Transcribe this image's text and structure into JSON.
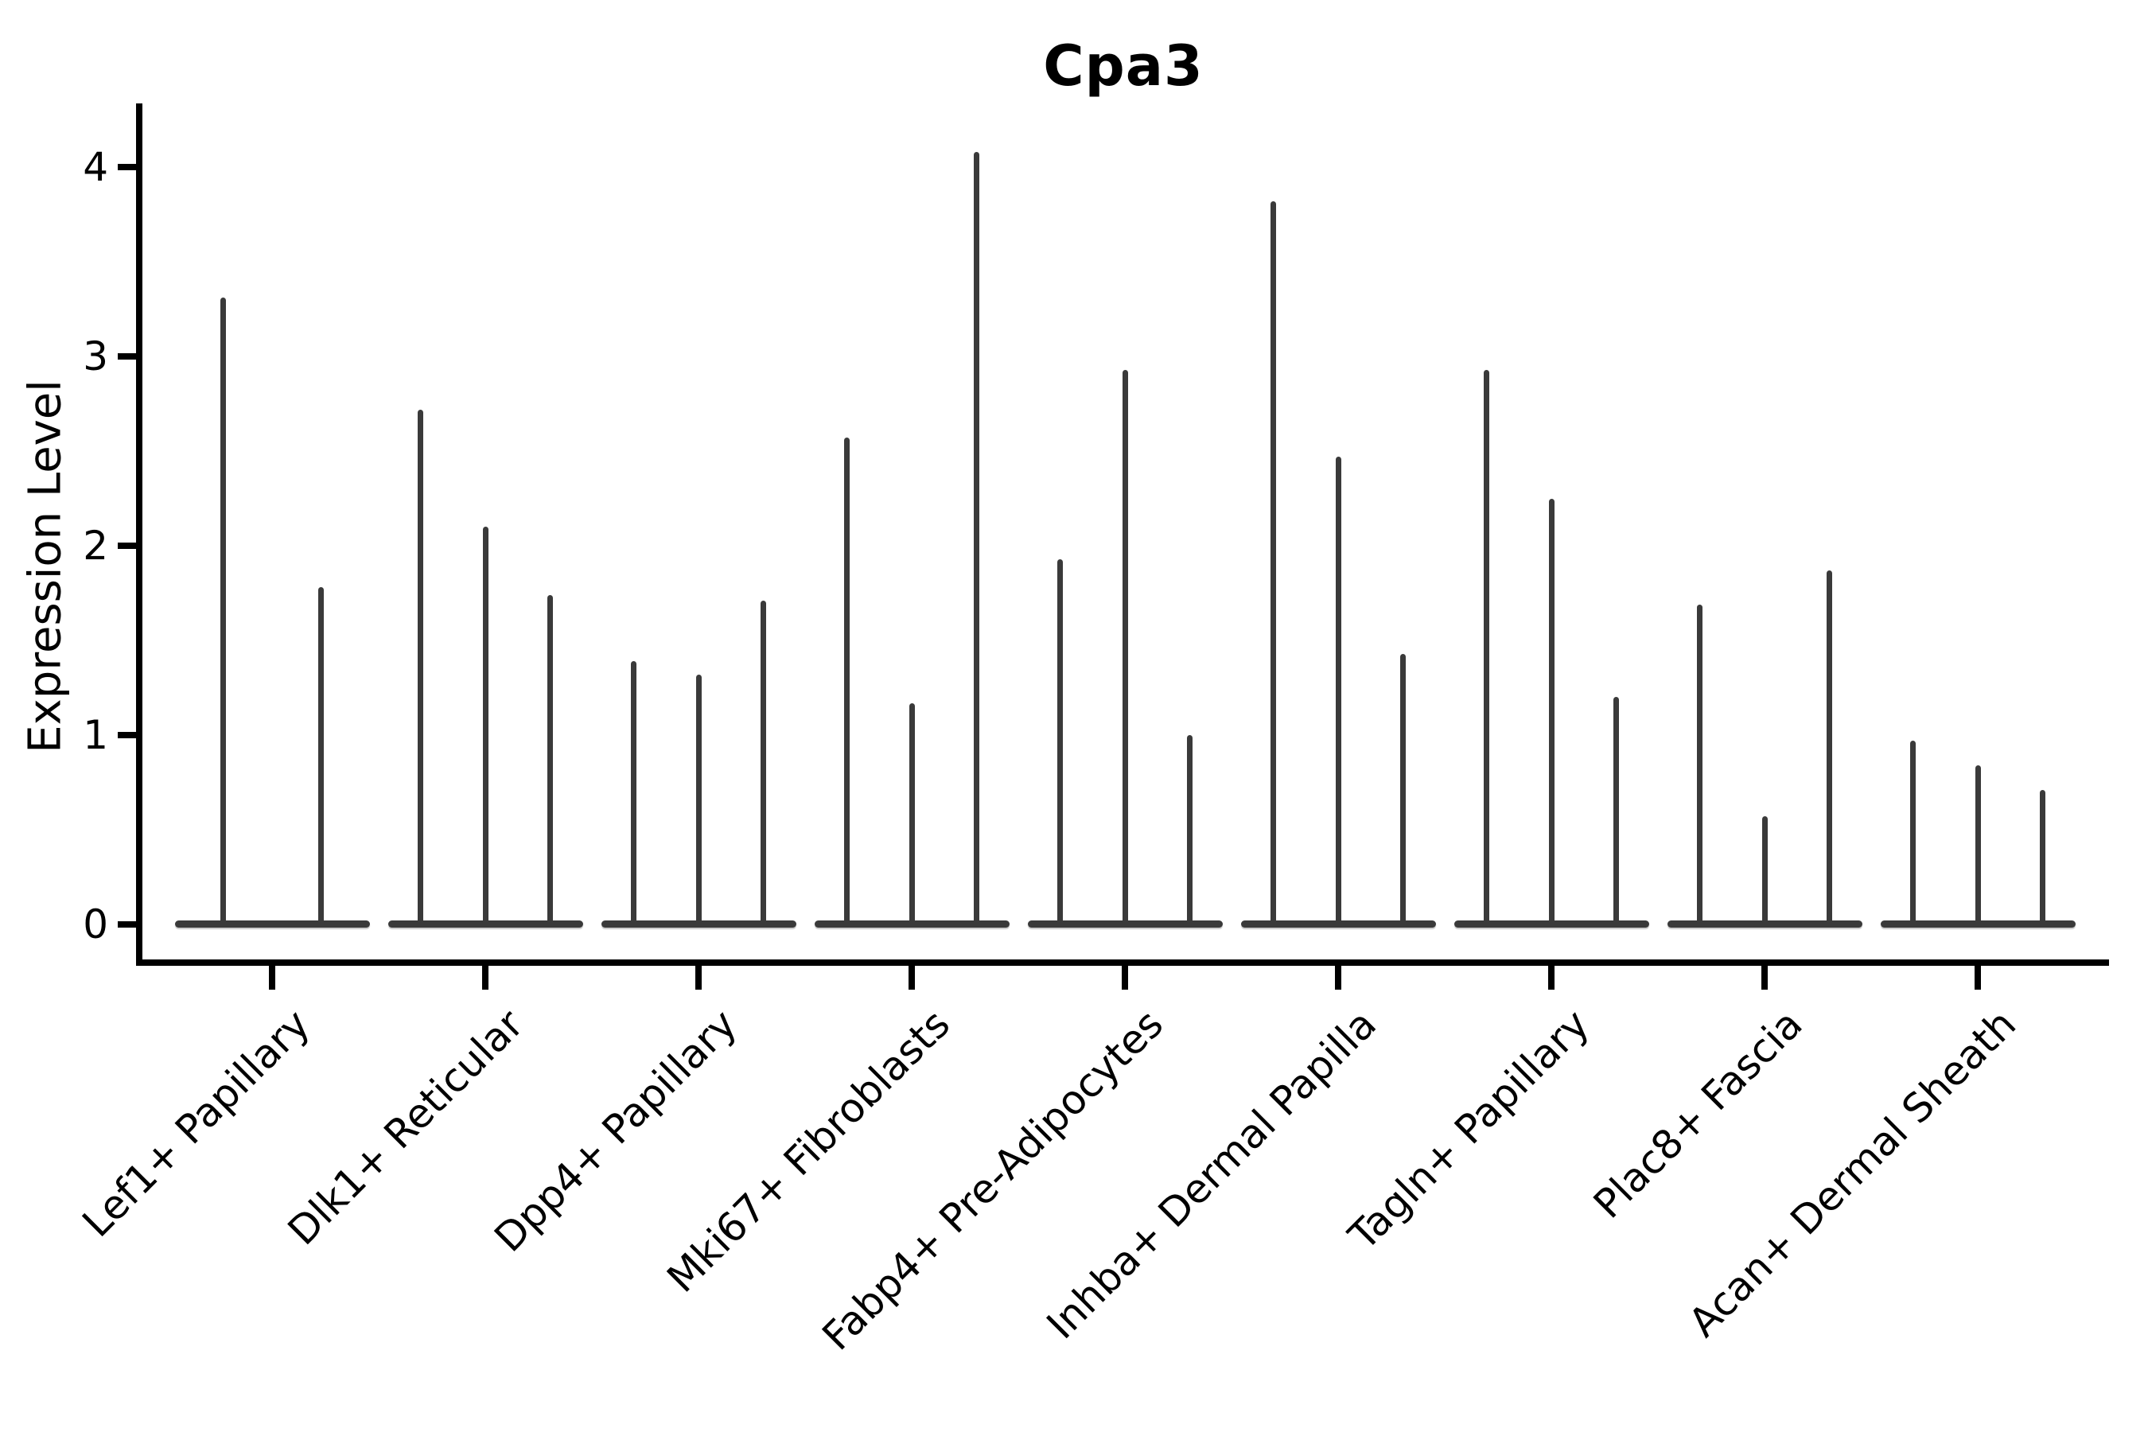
{
  "chart_data": {
    "type": "violin",
    "title": "Cpa3",
    "ylabel": "Expression Level",
    "xlabel": "",
    "yticks": [
      0,
      1,
      2,
      3,
      4
    ],
    "ylim": [
      -0.2,
      4.33
    ],
    "grid": false,
    "legend": "none",
    "description": "Stacked violin plot of Cpa3 expression; each cell-type group shows 2-3 extremely thin violins (flat base at 0 with a narrow spike up to the max expression value).",
    "violin_color": "#3a3a3a",
    "axis_color": "#000000",
    "categories": [
      "Lef1+ Papillary",
      "Dlk1+ Reticular",
      "Dpp4+ Papillary",
      "Mki67+ Fibroblasts",
      "Fabp4+ Pre-Adipocytes",
      "Inhba+ Dermal Papilla",
      "Tagln+ Papillary",
      "Plac8+ Fascia",
      "Acan+ Dermal Sheath"
    ],
    "groups": [
      {
        "label": "Lef1+ Papillary",
        "spike_maxima": [
          3.31,
          1.78
        ]
      },
      {
        "label": "Dlk1+ Reticular",
        "spike_maxima": [
          2.72,
          2.1,
          1.74
        ]
      },
      {
        "label": "Dpp4+ Papillary",
        "spike_maxima": [
          1.39,
          1.32,
          1.71
        ]
      },
      {
        "label": "Mki67+ Fibroblasts",
        "spike_maxima": [
          2.57,
          1.17,
          4.08
        ]
      },
      {
        "label": "Fabp4+ Pre-Adipocytes",
        "spike_maxima": [
          1.93,
          2.93,
          1.0
        ]
      },
      {
        "label": "Inhba+ Dermal Papilla",
        "spike_maxima": [
          3.82,
          2.47,
          1.43
        ]
      },
      {
        "label": "Tagln+ Papillary",
        "spike_maxima": [
          2.93,
          2.25,
          1.2
        ]
      },
      {
        "label": "Plac8+ Fascia",
        "spike_maxima": [
          1.69,
          0.57,
          1.87
        ]
      },
      {
        "label": "Acan+ Dermal Sheath",
        "spike_maxima": [
          0.97,
          0.84,
          0.71
        ]
      }
    ]
  }
}
